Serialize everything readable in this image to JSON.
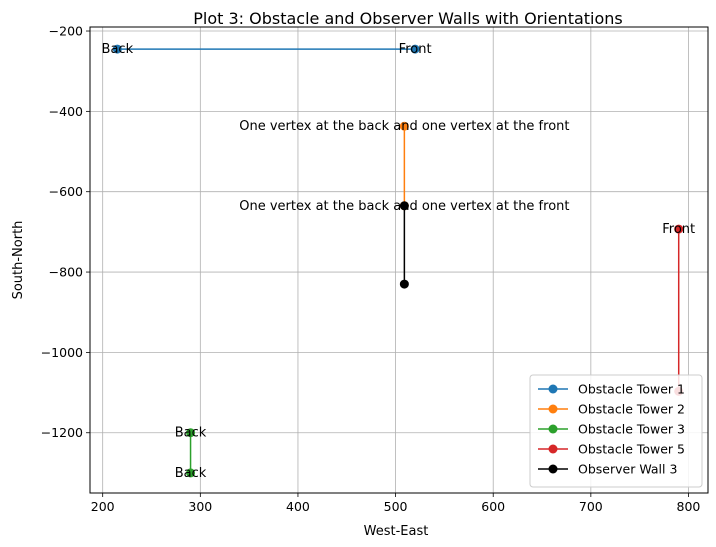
{
  "chart_data": {
    "type": "line",
    "title": "Plot 3: Obstacle and Observer Walls with Orientations",
    "xlabel": "West-East",
    "ylabel": "South-North",
    "xlim": [
      187,
      820
    ],
    "ylim": [
      -1350,
      -190
    ],
    "xticks": [
      200,
      300,
      400,
      500,
      600,
      700,
      800
    ],
    "yticks": [
      -200,
      -400,
      -600,
      -800,
      -1000,
      -1200
    ],
    "grid": true,
    "legend_position": "lower-right",
    "series": [
      {
        "name": "Obstacle Tower 1",
        "color": "#1f77b4",
        "x": [
          215,
          520
        ],
        "y": [
          -245,
          -245
        ]
      },
      {
        "name": "Obstacle Tower 2",
        "color": "#ff7f0e",
        "x": [
          509,
          509
        ],
        "y": [
          -437,
          -635
        ]
      },
      {
        "name": "Obstacle Tower 3",
        "color": "#2ca02c",
        "x": [
          290,
          290
        ],
        "y": [
          -1200,
          -1300
        ]
      },
      {
        "name": "Obstacle Tower 5",
        "color": "#d62728",
        "x": [
          790,
          790
        ],
        "y": [
          -693,
          -1097
        ]
      },
      {
        "name": "Observer Wall 3",
        "color": "#000000",
        "x": [
          509,
          509
        ],
        "y": [
          -635,
          -830
        ]
      }
    ],
    "annotations": [
      {
        "text": "Back",
        "x": 215,
        "y": -245
      },
      {
        "text": "Front",
        "x": 520,
        "y": -245
      },
      {
        "text": "One vertex at the back and one vertex at the front",
        "x": 509,
        "y": -437
      },
      {
        "text": "One vertex at the back and one vertex at the front",
        "x": 509,
        "y": -635
      },
      {
        "text": "Back",
        "x": 290,
        "y": -1200
      },
      {
        "text": "Back",
        "x": 290,
        "y": -1300
      },
      {
        "text": "Front",
        "x": 790,
        "y": -693
      }
    ]
  }
}
